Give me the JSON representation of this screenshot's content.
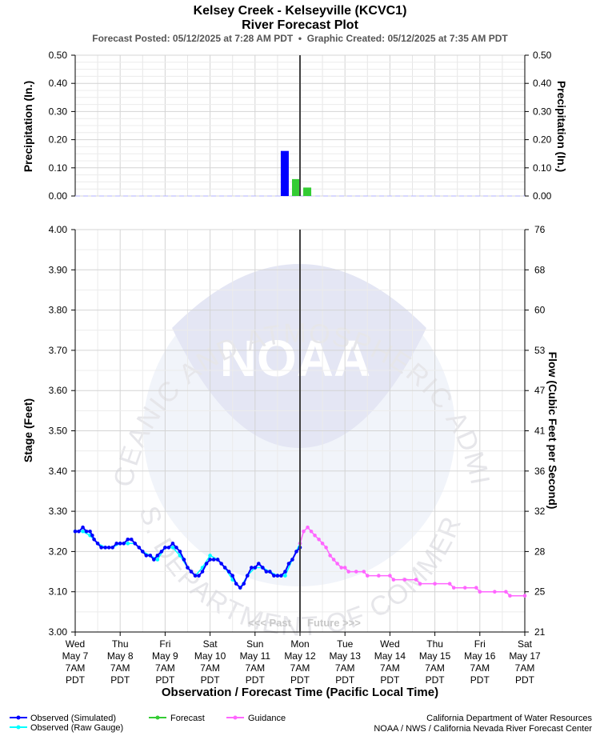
{
  "header": {
    "title": "Kelsey Creek - Kelseyville (KCVC1)",
    "subtitle": "River Forecast Plot",
    "posted": "Forecast Posted: 05/12/2025 at 7:28 AM PDT  •  Graphic Created: 05/12/2025 at 7:35 AM PDT"
  },
  "watermark": {
    "logo_text": "NOAA",
    "arc_top": "NATIONAL OCEANIC AND ATMOSPHERIC ADMINISTRATION",
    "arc_bottom": "U.S. DEPARTMENT OF COMMERCE"
  },
  "past_label": "<<< Past",
  "future_label": "Future >>>",
  "legend": {
    "observed_sim": "Observed (Simulated)",
    "observed_raw": "Observed (Raw Gauge)",
    "forecast": "Forecast",
    "guidance": "Guidance"
  },
  "footer": {
    "line1": "California Department of Water Resources",
    "line2": "NOAA / NWS / California Nevada River Forecast Center"
  },
  "colors": {
    "observed_sim": "#0000ff",
    "observed_raw": "#00ffff",
    "forecast": "#33cc33",
    "guidance": "#ff66ff",
    "now_line": "#404040"
  },
  "chart_data": [
    {
      "type": "bar",
      "name": "precipitation",
      "ylabel": "Precipitation (In.)",
      "ylabel_right": "Precipitation (In.)",
      "ylim": [
        0,
        0.5
      ],
      "yticks": [
        "0.00",
        "0.10",
        "0.20",
        "0.30",
        "0.40",
        "0.50"
      ],
      "series": [
        {
          "name": "Observed",
          "color": "#0000ff",
          "points": [
            {
              "x": 4.75,
              "value": 0.16
            }
          ]
        },
        {
          "name": "Forecast",
          "color": "#33cc33",
          "points": [
            {
              "x": 5.0,
              "value": 0.06
            },
            {
              "x": 5.25,
              "value": 0.03
            }
          ]
        }
      ]
    },
    {
      "type": "line",
      "name": "stage",
      "xlabel": "Observation / Forecast Time (Pacific Local Time)",
      "ylabel": "Stage (Feet)",
      "ylabel_right": "Flow (Cubic Feet per Second)",
      "ylim": [
        3.0,
        4.0
      ],
      "xlim": [
        0,
        10
      ],
      "now_x": 5.0,
      "yticks": [
        "3.00",
        "3.10",
        "3.20",
        "3.30",
        "3.40",
        "3.50",
        "3.60",
        "3.70",
        "3.80",
        "3.90",
        "4.00"
      ],
      "yticks_right": [
        "21",
        "25",
        "28",
        "32",
        "36",
        "41",
        "47",
        "53",
        "60",
        "68",
        "76"
      ],
      "xticks": [
        {
          "day": "Wed",
          "date": "May 7",
          "time": "7AM",
          "tz": "PDT"
        },
        {
          "day": "Thu",
          "date": "May 8",
          "time": "7AM",
          "tz": "PDT"
        },
        {
          "day": "Fri",
          "date": "May 9",
          "time": "7AM",
          "tz": "PDT"
        },
        {
          "day": "Sat",
          "date": "May 10",
          "time": "7AM",
          "tz": "PDT"
        },
        {
          "day": "Sun",
          "date": "May 11",
          "time": "7AM",
          "tz": "PDT"
        },
        {
          "day": "Mon",
          "date": "May 12",
          "time": "7AM",
          "tz": "PDT"
        },
        {
          "day": "Tue",
          "date": "May 13",
          "time": "7AM",
          "tz": "PDT"
        },
        {
          "day": "Wed",
          "date": "May 14",
          "time": "7AM",
          "tz": "PDT"
        },
        {
          "day": "Thu",
          "date": "May 15",
          "time": "7AM",
          "tz": "PDT"
        },
        {
          "day": "Fri",
          "date": "May 16",
          "time": "7AM",
          "tz": "PDT"
        },
        {
          "day": "Sat",
          "date": "May 17",
          "time": "7AM",
          "tz": "PDT"
        }
      ],
      "observed_simulated": [
        [
          0.0,
          3.25
        ],
        [
          0.08,
          3.25
        ],
        [
          0.17,
          3.26
        ],
        [
          0.25,
          3.25
        ],
        [
          0.33,
          3.25
        ],
        [
          0.38,
          3.24
        ],
        [
          0.42,
          3.23
        ],
        [
          0.5,
          3.22
        ],
        [
          0.58,
          3.21
        ],
        [
          0.67,
          3.21
        ],
        [
          0.75,
          3.21
        ],
        [
          0.83,
          3.21
        ],
        [
          0.92,
          3.22
        ],
        [
          1.0,
          3.22
        ],
        [
          1.08,
          3.22
        ],
        [
          1.17,
          3.23
        ],
        [
          1.25,
          3.23
        ],
        [
          1.33,
          3.22
        ],
        [
          1.42,
          3.21
        ],
        [
          1.5,
          3.2
        ],
        [
          1.58,
          3.19
        ],
        [
          1.67,
          3.19
        ],
        [
          1.75,
          3.18
        ],
        [
          1.83,
          3.19
        ],
        [
          1.92,
          3.2
        ],
        [
          2.0,
          3.21
        ],
        [
          2.08,
          3.21
        ],
        [
          2.17,
          3.22
        ],
        [
          2.25,
          3.21
        ],
        [
          2.33,
          3.2
        ],
        [
          2.42,
          3.18
        ],
        [
          2.5,
          3.16
        ],
        [
          2.58,
          3.15
        ],
        [
          2.67,
          3.14
        ],
        [
          2.75,
          3.14
        ],
        [
          2.83,
          3.15
        ],
        [
          2.92,
          3.17
        ],
        [
          3.0,
          3.18
        ],
        [
          3.08,
          3.18
        ],
        [
          3.17,
          3.18
        ],
        [
          3.25,
          3.17
        ],
        [
          3.33,
          3.16
        ],
        [
          3.42,
          3.15
        ],
        [
          3.5,
          3.14
        ],
        [
          3.58,
          3.12
        ],
        [
          3.67,
          3.11
        ],
        [
          3.75,
          3.12
        ],
        [
          3.83,
          3.14
        ],
        [
          3.92,
          3.16
        ],
        [
          4.0,
          3.16
        ],
        [
          4.08,
          3.17
        ],
        [
          4.17,
          3.16
        ],
        [
          4.25,
          3.15
        ],
        [
          4.33,
          3.15
        ],
        [
          4.42,
          3.14
        ],
        [
          4.5,
          3.14
        ],
        [
          4.58,
          3.14
        ],
        [
          4.67,
          3.15
        ],
        [
          4.75,
          3.17
        ],
        [
          4.83,
          3.18
        ],
        [
          4.92,
          3.2
        ],
        [
          5.0,
          3.21
        ]
      ],
      "observed_raw": [
        [
          0.0,
          3.25
        ],
        [
          0.17,
          3.25
        ],
        [
          0.33,
          3.24
        ],
        [
          0.5,
          3.22
        ],
        [
          0.67,
          3.21
        ],
        [
          0.83,
          3.21
        ],
        [
          1.0,
          3.22
        ],
        [
          1.17,
          3.22
        ],
        [
          1.33,
          3.22
        ],
        [
          1.5,
          3.2
        ],
        [
          1.67,
          3.19
        ],
        [
          1.83,
          3.18
        ],
        [
          2.0,
          3.21
        ],
        [
          2.17,
          3.21
        ],
        [
          2.33,
          3.19
        ],
        [
          2.5,
          3.16
        ],
        [
          2.67,
          3.14
        ],
        [
          2.83,
          3.16
        ],
        [
          3.0,
          3.19
        ],
        [
          3.17,
          3.18
        ],
        [
          3.33,
          3.16
        ],
        [
          3.5,
          3.13
        ],
        [
          3.67,
          3.11
        ],
        [
          3.83,
          3.14
        ],
        [
          4.0,
          3.16
        ],
        [
          4.17,
          3.16
        ],
        [
          4.33,
          3.15
        ],
        [
          4.5,
          3.14
        ],
        [
          4.67,
          3.14
        ],
        [
          4.83,
          3.18
        ],
        [
          5.0,
          3.22
        ]
      ],
      "guidance": [
        [
          5.0,
          3.22
        ],
        [
          5.08,
          3.25
        ],
        [
          5.17,
          3.26
        ],
        [
          5.25,
          3.25
        ],
        [
          5.33,
          3.24
        ],
        [
          5.42,
          3.23
        ],
        [
          5.5,
          3.22
        ],
        [
          5.58,
          3.21
        ],
        [
          5.67,
          3.19
        ],
        [
          5.75,
          3.18
        ],
        [
          5.83,
          3.17
        ],
        [
          5.92,
          3.16
        ],
        [
          6.0,
          3.16
        ],
        [
          6.08,
          3.15
        ],
        [
          6.25,
          3.15
        ],
        [
          6.42,
          3.15
        ],
        [
          6.5,
          3.14
        ],
        [
          6.75,
          3.14
        ],
        [
          7.0,
          3.14
        ],
        [
          7.08,
          3.13
        ],
        [
          7.33,
          3.13
        ],
        [
          7.58,
          3.13
        ],
        [
          7.67,
          3.12
        ],
        [
          8.0,
          3.12
        ],
        [
          8.33,
          3.12
        ],
        [
          8.42,
          3.11
        ],
        [
          8.67,
          3.11
        ],
        [
          8.92,
          3.11
        ],
        [
          9.0,
          3.1
        ],
        [
          9.33,
          3.1
        ],
        [
          9.58,
          3.1
        ],
        [
          9.67,
          3.09
        ],
        [
          10.0,
          3.09
        ]
      ]
    }
  ]
}
